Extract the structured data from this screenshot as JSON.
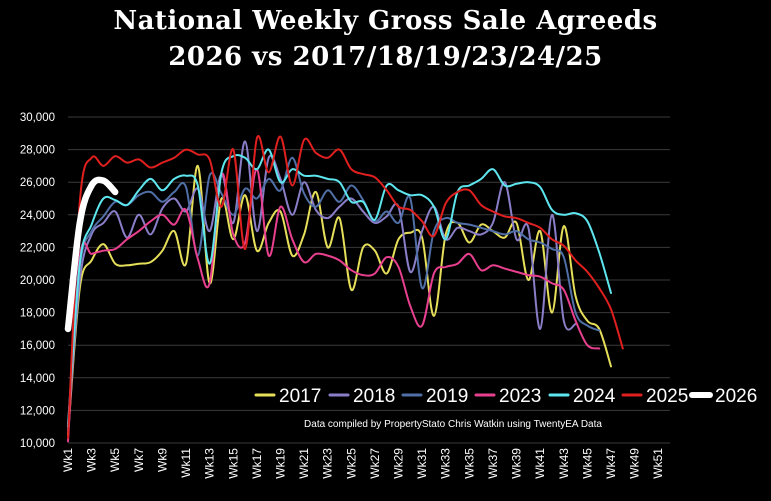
{
  "chart_data": {
    "type": "line",
    "title": "National Weekly Gross Sale Agreeds",
    "subtitle": "2026 vs 2017/18/19/23/24/25",
    "note": "Data compiled by PropertyStato Chris Watkin using TwentyEA Data",
    "ylim": [
      10000,
      30000
    ],
    "y_ticks": [
      "10,000",
      "12,000",
      "14,000",
      "16,000",
      "18,000",
      "20,000",
      "22,000",
      "24,000",
      "26,000",
      "28,000",
      "30,000"
    ],
    "y_tick_values": [
      10000,
      12000,
      14000,
      16000,
      18000,
      20000,
      22000,
      24000,
      26000,
      28000,
      30000
    ],
    "x_ticks": [
      "Wk1",
      "Wk3",
      "Wk5",
      "Wk7",
      "Wk9",
      "Wk11",
      "Wk13",
      "Wk15",
      "Wk17",
      "Wk19",
      "Wk21",
      "Wk23",
      "Wk25",
      "Wk27",
      "Wk29",
      "Wk31",
      "Wk33",
      "Wk35",
      "Wk37",
      "Wk39",
      "Wk41",
      "Wk43",
      "Wk45",
      "Wk47",
      "Wk49",
      "Wk51"
    ],
    "x_tick_weeks": [
      1,
      3,
      5,
      7,
      9,
      11,
      13,
      15,
      17,
      19,
      21,
      23,
      25,
      27,
      29,
      31,
      33,
      35,
      37,
      39,
      41,
      43,
      45,
      47,
      49,
      51
    ],
    "grid": true,
    "legend_position": "bottom-right",
    "series": [
      {
        "name": "2017",
        "color": "#e6df5a",
        "width": 2,
        "values": [
          10500,
          19500,
          21200,
          22200,
          21000,
          20900,
          21000,
          21100,
          21800,
          23000,
          21000,
          27000,
          19800,
          25000,
          22500,
          25200,
          21800,
          23500,
          24200,
          21500,
          22800,
          25400,
          22000,
          23800,
          19400,
          22000,
          21800,
          20400,
          22500,
          22900,
          22600,
          17800,
          22800,
          23500,
          22300,
          23400,
          23000,
          22600,
          23500,
          20000,
          23000,
          18000,
          23300,
          19000,
          17500,
          17000,
          14700
        ]
      },
      {
        "name": "2018",
        "color": "#8b7ec8",
        "width": 2,
        "values": [
          10800,
          20000,
          22800,
          23500,
          24200,
          22600,
          24000,
          22800,
          24400,
          25000,
          24200,
          25600,
          23000,
          26500,
          23500,
          28500,
          23000,
          27500,
          26200,
          24000,
          26000,
          24300,
          23800,
          24500,
          25000,
          24200,
          23500,
          23900,
          24500,
          20500,
          23000,
          24500,
          22500,
          23200,
          23000,
          22800,
          23500,
          26000,
          22500,
          23200,
          17000,
          24000,
          17500,
          17300
        ]
      },
      {
        "name": "2019",
        "color": "#4f6fa6",
        "width": 2,
        "values": [
          11200,
          20800,
          23000,
          23900,
          24800,
          24600,
          25200,
          25400,
          24800,
          25400,
          25700,
          21500,
          26400,
          25300,
          24000,
          25600,
          25000,
          26200,
          25500,
          27500,
          25300,
          24500,
          25500,
          24800,
          25800,
          24900,
          23600,
          24200,
          23500,
          25000,
          19500,
          23000,
          23800,
          23500,
          23400,
          23200,
          23000,
          22800,
          23000,
          22500,
          22300,
          21900,
          21400,
          18000,
          17200,
          16900
        ]
      },
      {
        "name": "2023",
        "color": "#e8408f",
        "width": 2,
        "values": [
          10100,
          21400,
          21600,
          21800,
          21900,
          22500,
          23000,
          23600,
          24000,
          23400,
          24300,
          21300,
          19800,
          26500,
          22800,
          22300,
          26800,
          21500,
          24500,
          22500,
          21100,
          21600,
          21500,
          21200,
          20600,
          20300,
          20400,
          21400,
          20800,
          18400,
          17200,
          20400,
          20800,
          21000,
          21600,
          20600,
          20900,
          20700,
          20500,
          20300,
          20200,
          19800,
          19400,
          17500,
          16000,
          15800
        ]
      },
      {
        "name": "2024",
        "color": "#5ee6ee",
        "width": 2,
        "values": [
          11000,
          21000,
          23400,
          25000,
          24900,
          24600,
          25500,
          26200,
          25500,
          26200,
          26400,
          25800,
          21000,
          26600,
          27600,
          27500,
          26800,
          28000,
          26000,
          26800,
          26400,
          26400,
          26200,
          26000,
          24800,
          24800,
          23700,
          25800,
          25500,
          25200,
          25200,
          24500,
          22500,
          25400,
          25800,
          26200,
          26800,
          25800,
          25900,
          26000,
          25700,
          24300,
          24000,
          24100,
          23600,
          21700,
          19200
        ]
      },
      {
        "name": "2025",
        "color": "#e0201f",
        "width": 2,
        "values": [
          10300,
          24800,
          27500,
          27000,
          27600,
          27200,
          27400,
          26900,
          27200,
          27500,
          28000,
          27700,
          27400,
          24500,
          28000,
          21900,
          28700,
          26600,
          28800,
          25800,
          28600,
          27800,
          27500,
          28000,
          26800,
          26500,
          26300,
          25500,
          24500,
          24300,
          23600,
          22700,
          24700,
          25400,
          25500,
          24600,
          24200,
          23900,
          23800,
          23500,
          23200,
          22500,
          22100,
          21200,
          20500,
          19500,
          18200,
          15800
        ]
      },
      {
        "name": "2026",
        "color": "#ffffff",
        "width": 6.5,
        "values": [
          17000,
          23500,
          25800,
          26100,
          25400
        ]
      }
    ]
  }
}
